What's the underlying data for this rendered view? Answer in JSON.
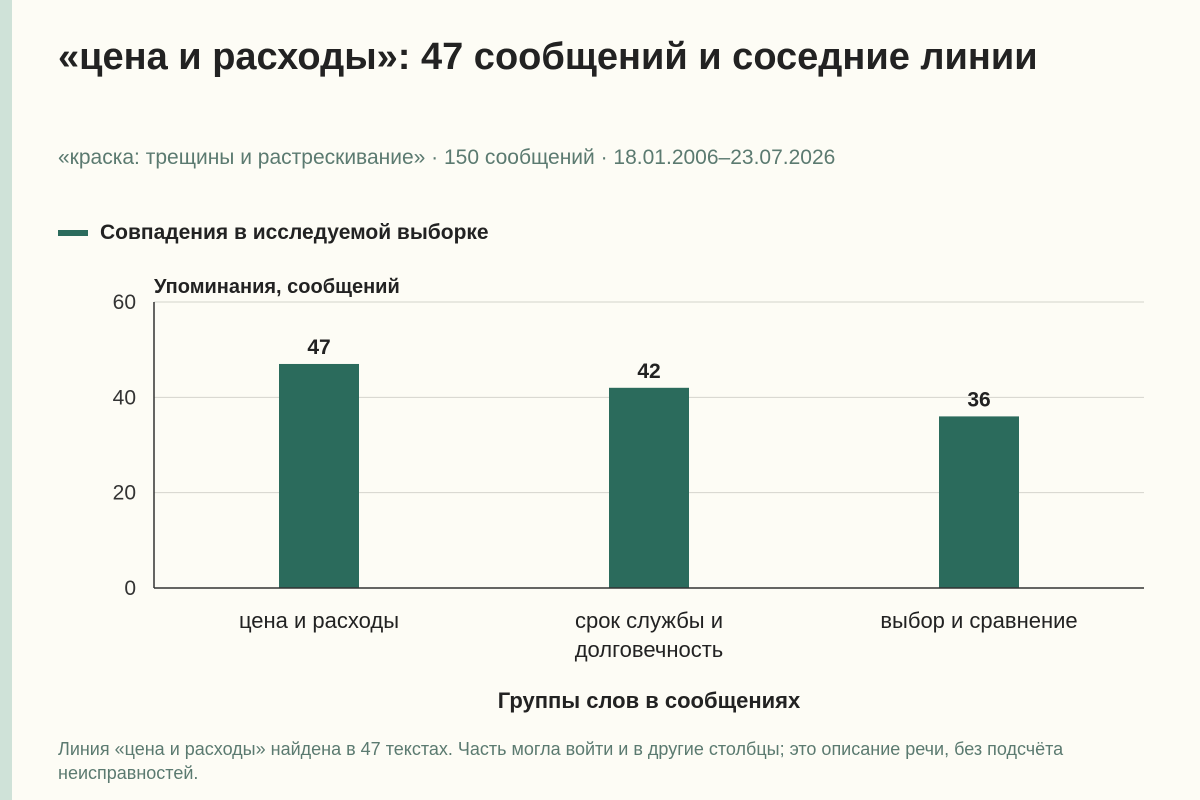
{
  "title": "«цена и расходы»: 47 сообщений и соседние линии",
  "subtitle": "«краска: трещины и растрескивание» · 150 сообщений · 18.01.2006–23.07.2026",
  "legend_label": "Совпадения в исследуемой выборке",
  "footnote": "Линия «цена и расходы» найдена в 47 текстах. Часть могла войти и в другие столбцы; это описание речи, без подсчёта неисправностей.",
  "colors": {
    "bar": "#2b6b5c",
    "background": "#fdfcf5",
    "accent_stripe": "#cfe2d8"
  },
  "chart_data": {
    "type": "bar",
    "categories": [
      [
        "цена и расходы"
      ],
      [
        "срок службы и",
        "долговечность"
      ],
      [
        "выбор и сравнение"
      ]
    ],
    "series": [
      {
        "name": "Совпадения в исследуемой выборке",
        "values": [
          47,
          42,
          36
        ]
      }
    ],
    "xlabel": "Группы слов в сообщениях",
    "ylabel": "Упоминания, сообщений",
    "ylim": [
      0,
      60
    ],
    "yticks": [
      0,
      20,
      40,
      60
    ],
    "grid": true,
    "legend": "top-left"
  }
}
